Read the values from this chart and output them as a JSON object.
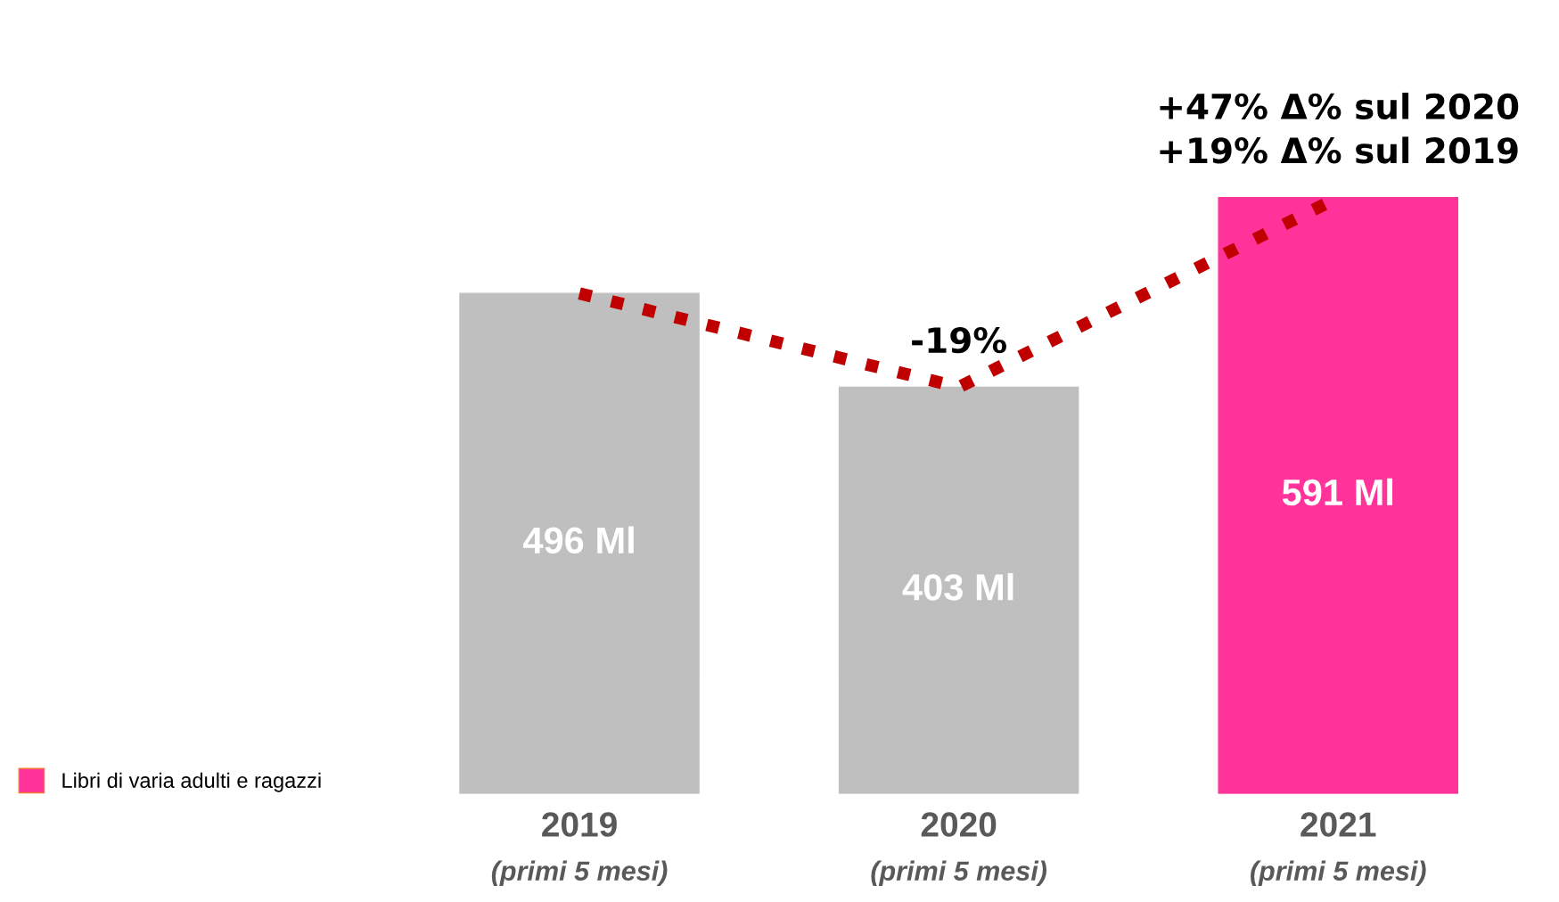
{
  "chart_data": {
    "type": "bar",
    "categories": [
      "2019\n(primi 5 mesi)",
      "2020\n(primi 5 mesi)",
      "2021\n(primi 5 mesi)"
    ],
    "series": [
      {
        "name": "Libri di varia adulti e ragazzi",
        "color": "#ff3399",
        "colors": [
          "#bfbfbf",
          "#bfbfbf",
          "#ff3399"
        ],
        "values": [
          496,
          403,
          591
        ],
        "value_labels": [
          "496 Ml",
          "403 Ml",
          "591 Ml"
        ]
      },
      {
        "type": "line",
        "color": "#c00000",
        "line_style": "dotted",
        "values": [
          496,
          403,
          591
        ]
      }
    ],
    "annotations": [
      {
        "text": "-19%",
        "x": "2020\n(primi 5 mesi)",
        "y": 403
      },
      {
        "text": "+47% Δ% sul 2020\n+19% Δ% sul 2019",
        "x": "2021\n(primi 5 mesi)",
        "y": 591
      }
    ],
    "legend": "bottom left",
    "grid": false,
    "tick_labels": "x"
  }
}
